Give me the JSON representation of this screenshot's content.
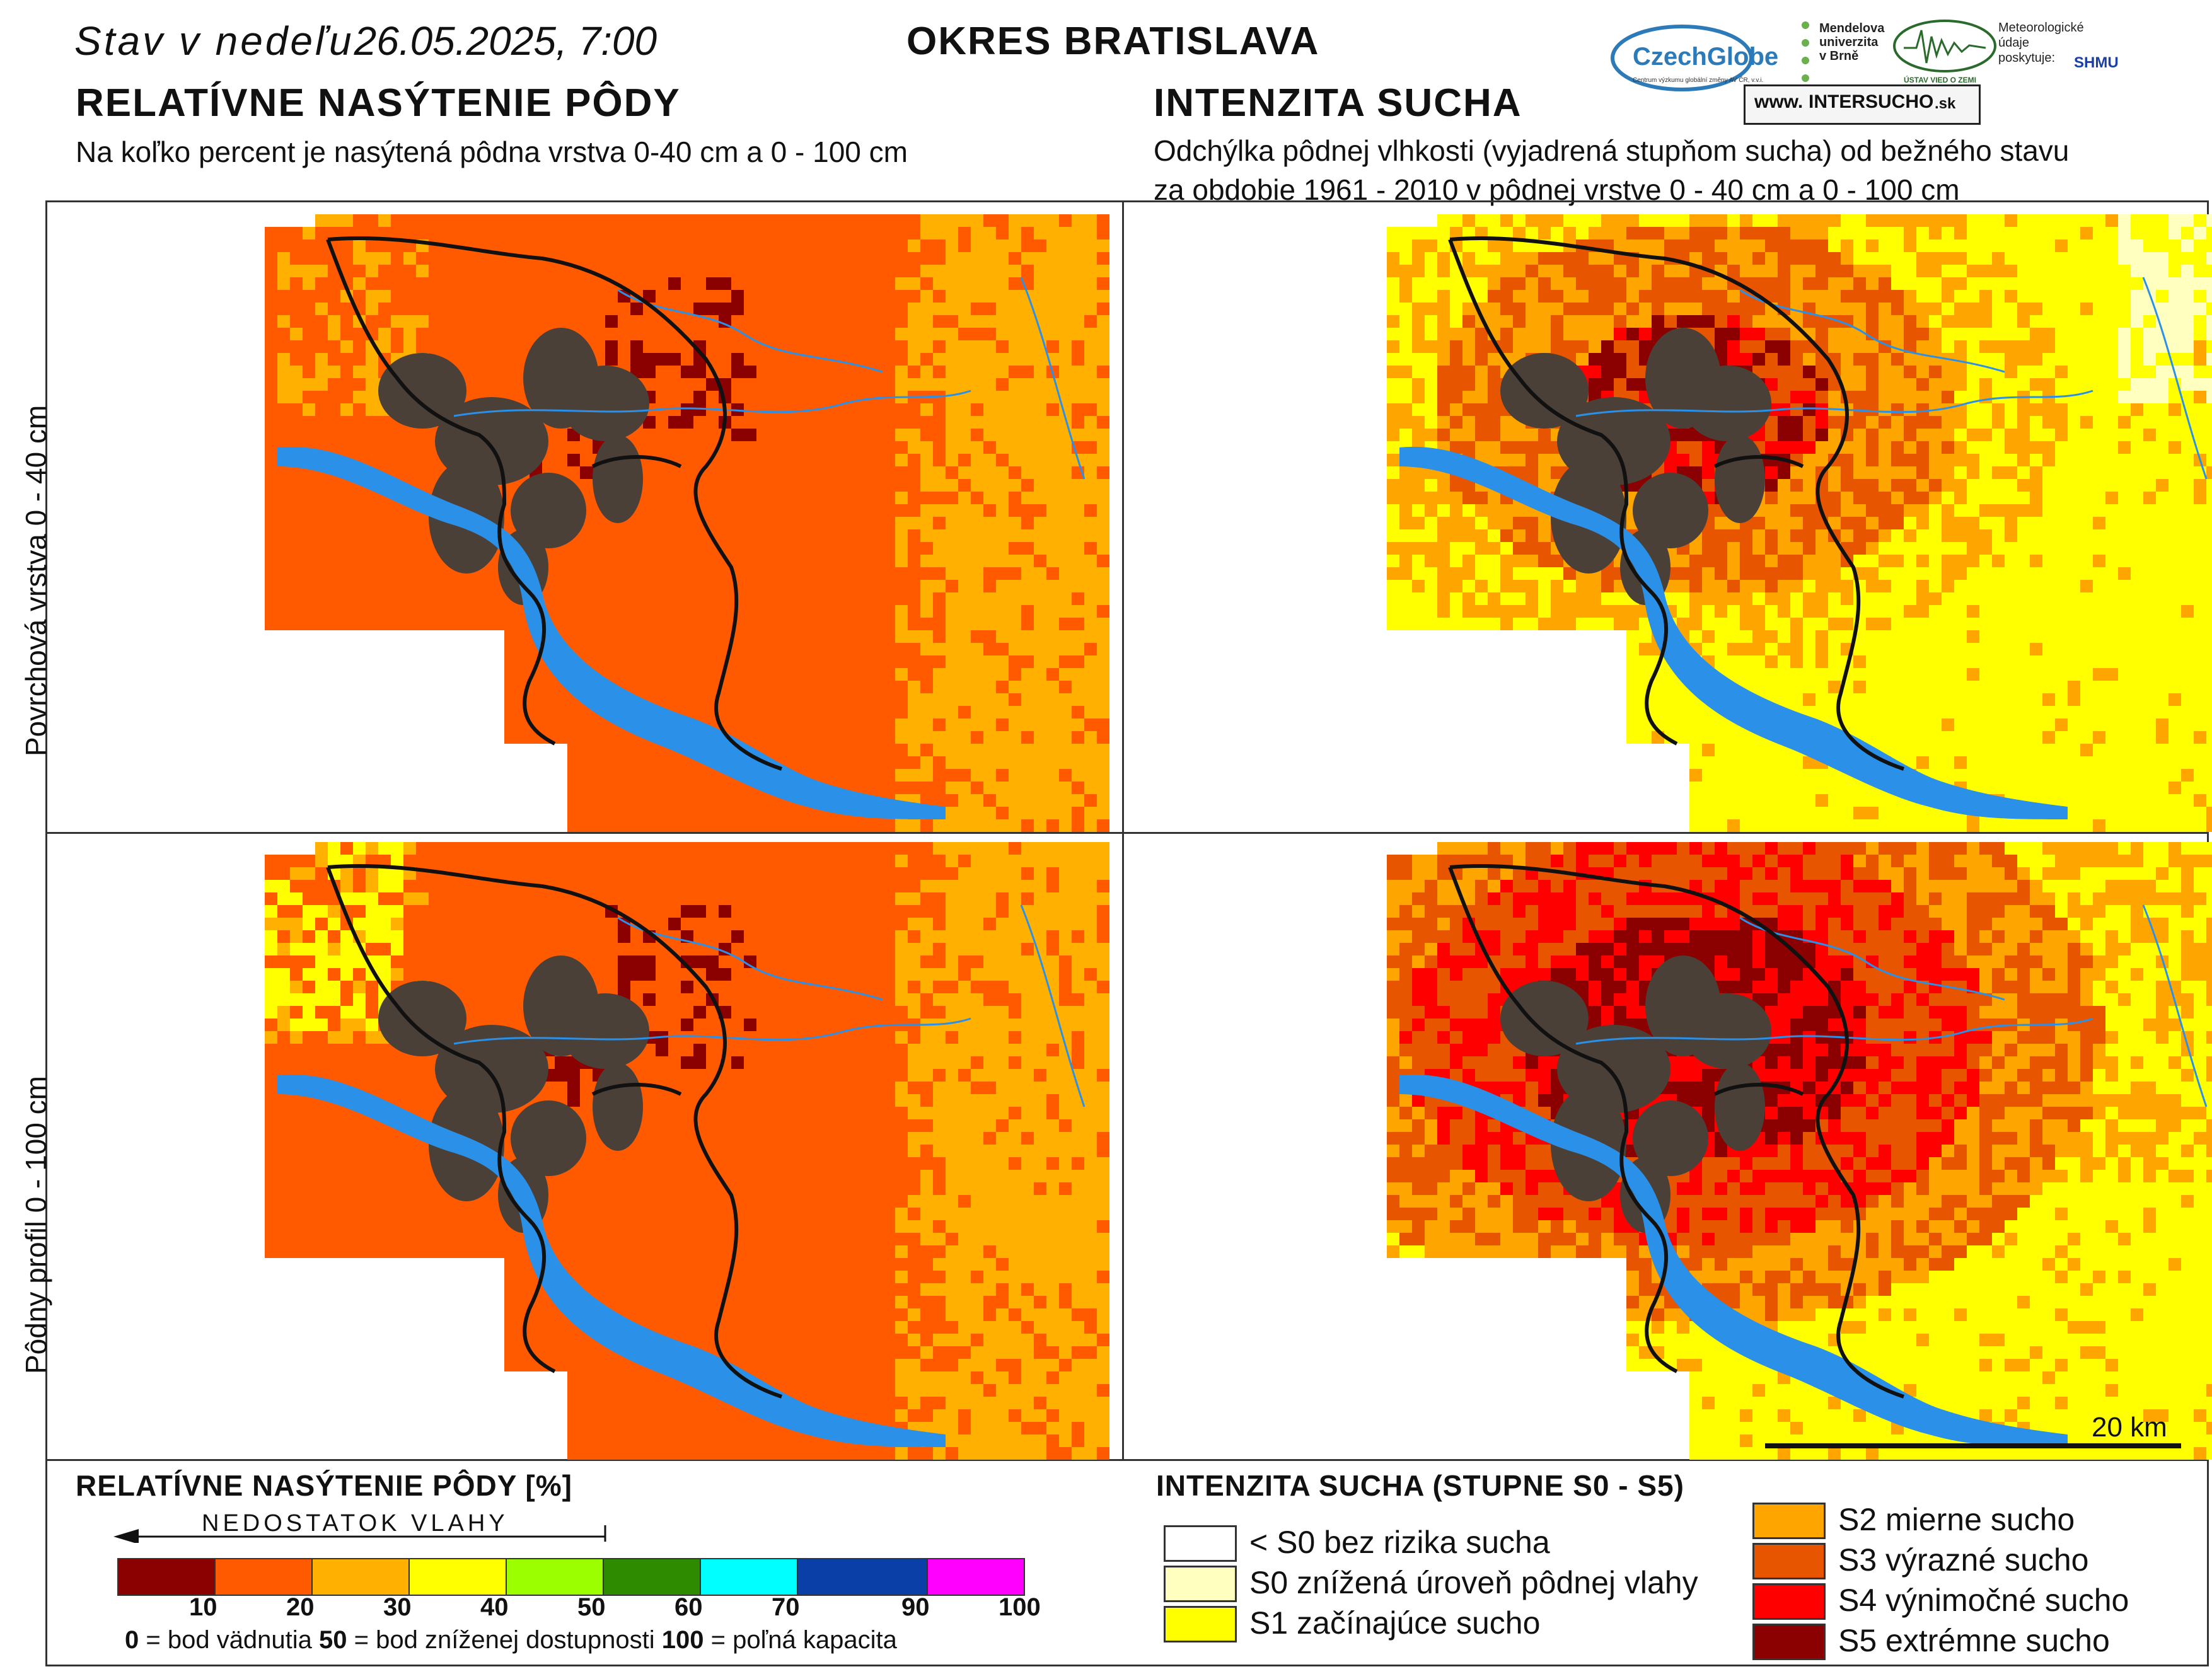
{
  "header": {
    "date_prefix": "Stav v nedeľu",
    "date_value": "26.05.2025, 7:00",
    "district": "OKRES  BRATISLAVA"
  },
  "left_section": {
    "title": "RELATÍVNE NASÝTENIE PÔDY",
    "subtitle": "Na koľko percent je nasýtená pôdna vrstva 0-40 cm a 0 - 100 cm"
  },
  "right_section": {
    "title": "INTENZITA SUCHA",
    "subtitle_line1": "Odchýlka pôdnej vlhkosti (vyjadrená stupňom sucha) od bežného stavu",
    "subtitle_line2": "za obdobie 1961 - 2010 v pôdnej vrstve 0 - 40 cm a 0 - 100 cm"
  },
  "logos": {
    "czechglobe": "CzechGlobe",
    "czechglobe_sub": "Centrum výzkumu globální změny AV ČR, v.v.i.",
    "mendel": "Mendelova univerzita v Brně",
    "ustav": "ÚSTAV VIED O ZEMI",
    "meteo": "Meteorologické údaje poskytuje:",
    "shmu": "SHMU",
    "intersucho_prefix": "www.",
    "intersucho_mid": "INTERSUCHO",
    "intersucho_suffix": ".sk"
  },
  "rows": {
    "top": "Povrchová vrstva 0 - 40 cm",
    "bottom": "Pôdny profil 0 - 100 cm"
  },
  "scale_bar": {
    "label": "20 km"
  },
  "saturation_legend": {
    "title": "RELATÍVNE NASÝTENIE PÔDY [%]",
    "arrow_label": "NEDOSTATOK VLAHY",
    "colors": [
      "#8b0000",
      "#ff5a00",
      "#ffb000",
      "#ffff00",
      "#9cff00",
      "#2e8b00",
      "#00ffff",
      "#0a3fa8",
      "#ff00ff"
    ],
    "ticks": [
      "10",
      "20",
      "30",
      "40",
      "50",
      "60",
      "70",
      "90",
      "100"
    ],
    "note_0": "0",
    "note_0_text": " = bod vädnutia  ",
    "note_50": "50",
    "note_50_text": " = bod zníženej dostupnosti  ",
    "note_100": "100",
    "note_100_text": " = poľná kapacita"
  },
  "drought_legend": {
    "title": "INTENZITA SUCHA (STUPNE S0 - S5)",
    "items": [
      {
        "label": "< S0 bez rizika sucha",
        "color": "#ffffff"
      },
      {
        "label": "S0 znížená úroveň pôdnej vlahy",
        "color": "#ffffc0"
      },
      {
        "label": "S1 začínajúce sucho",
        "color": "#ffff00"
      },
      {
        "label": "S2 mierne sucho",
        "color": "#ffa500"
      },
      {
        "label": "S3 výrazné sucho",
        "color": "#e85500"
      },
      {
        "label": "S4 výnimočné sucho",
        "color": "#ff0000"
      },
      {
        "label": "S5 extrémne sucho",
        "color": "#8b0000"
      }
    ]
  },
  "map_colors": {
    "urban": "#4a4038",
    "water": "#2a90e8",
    "border": "#111111"
  }
}
